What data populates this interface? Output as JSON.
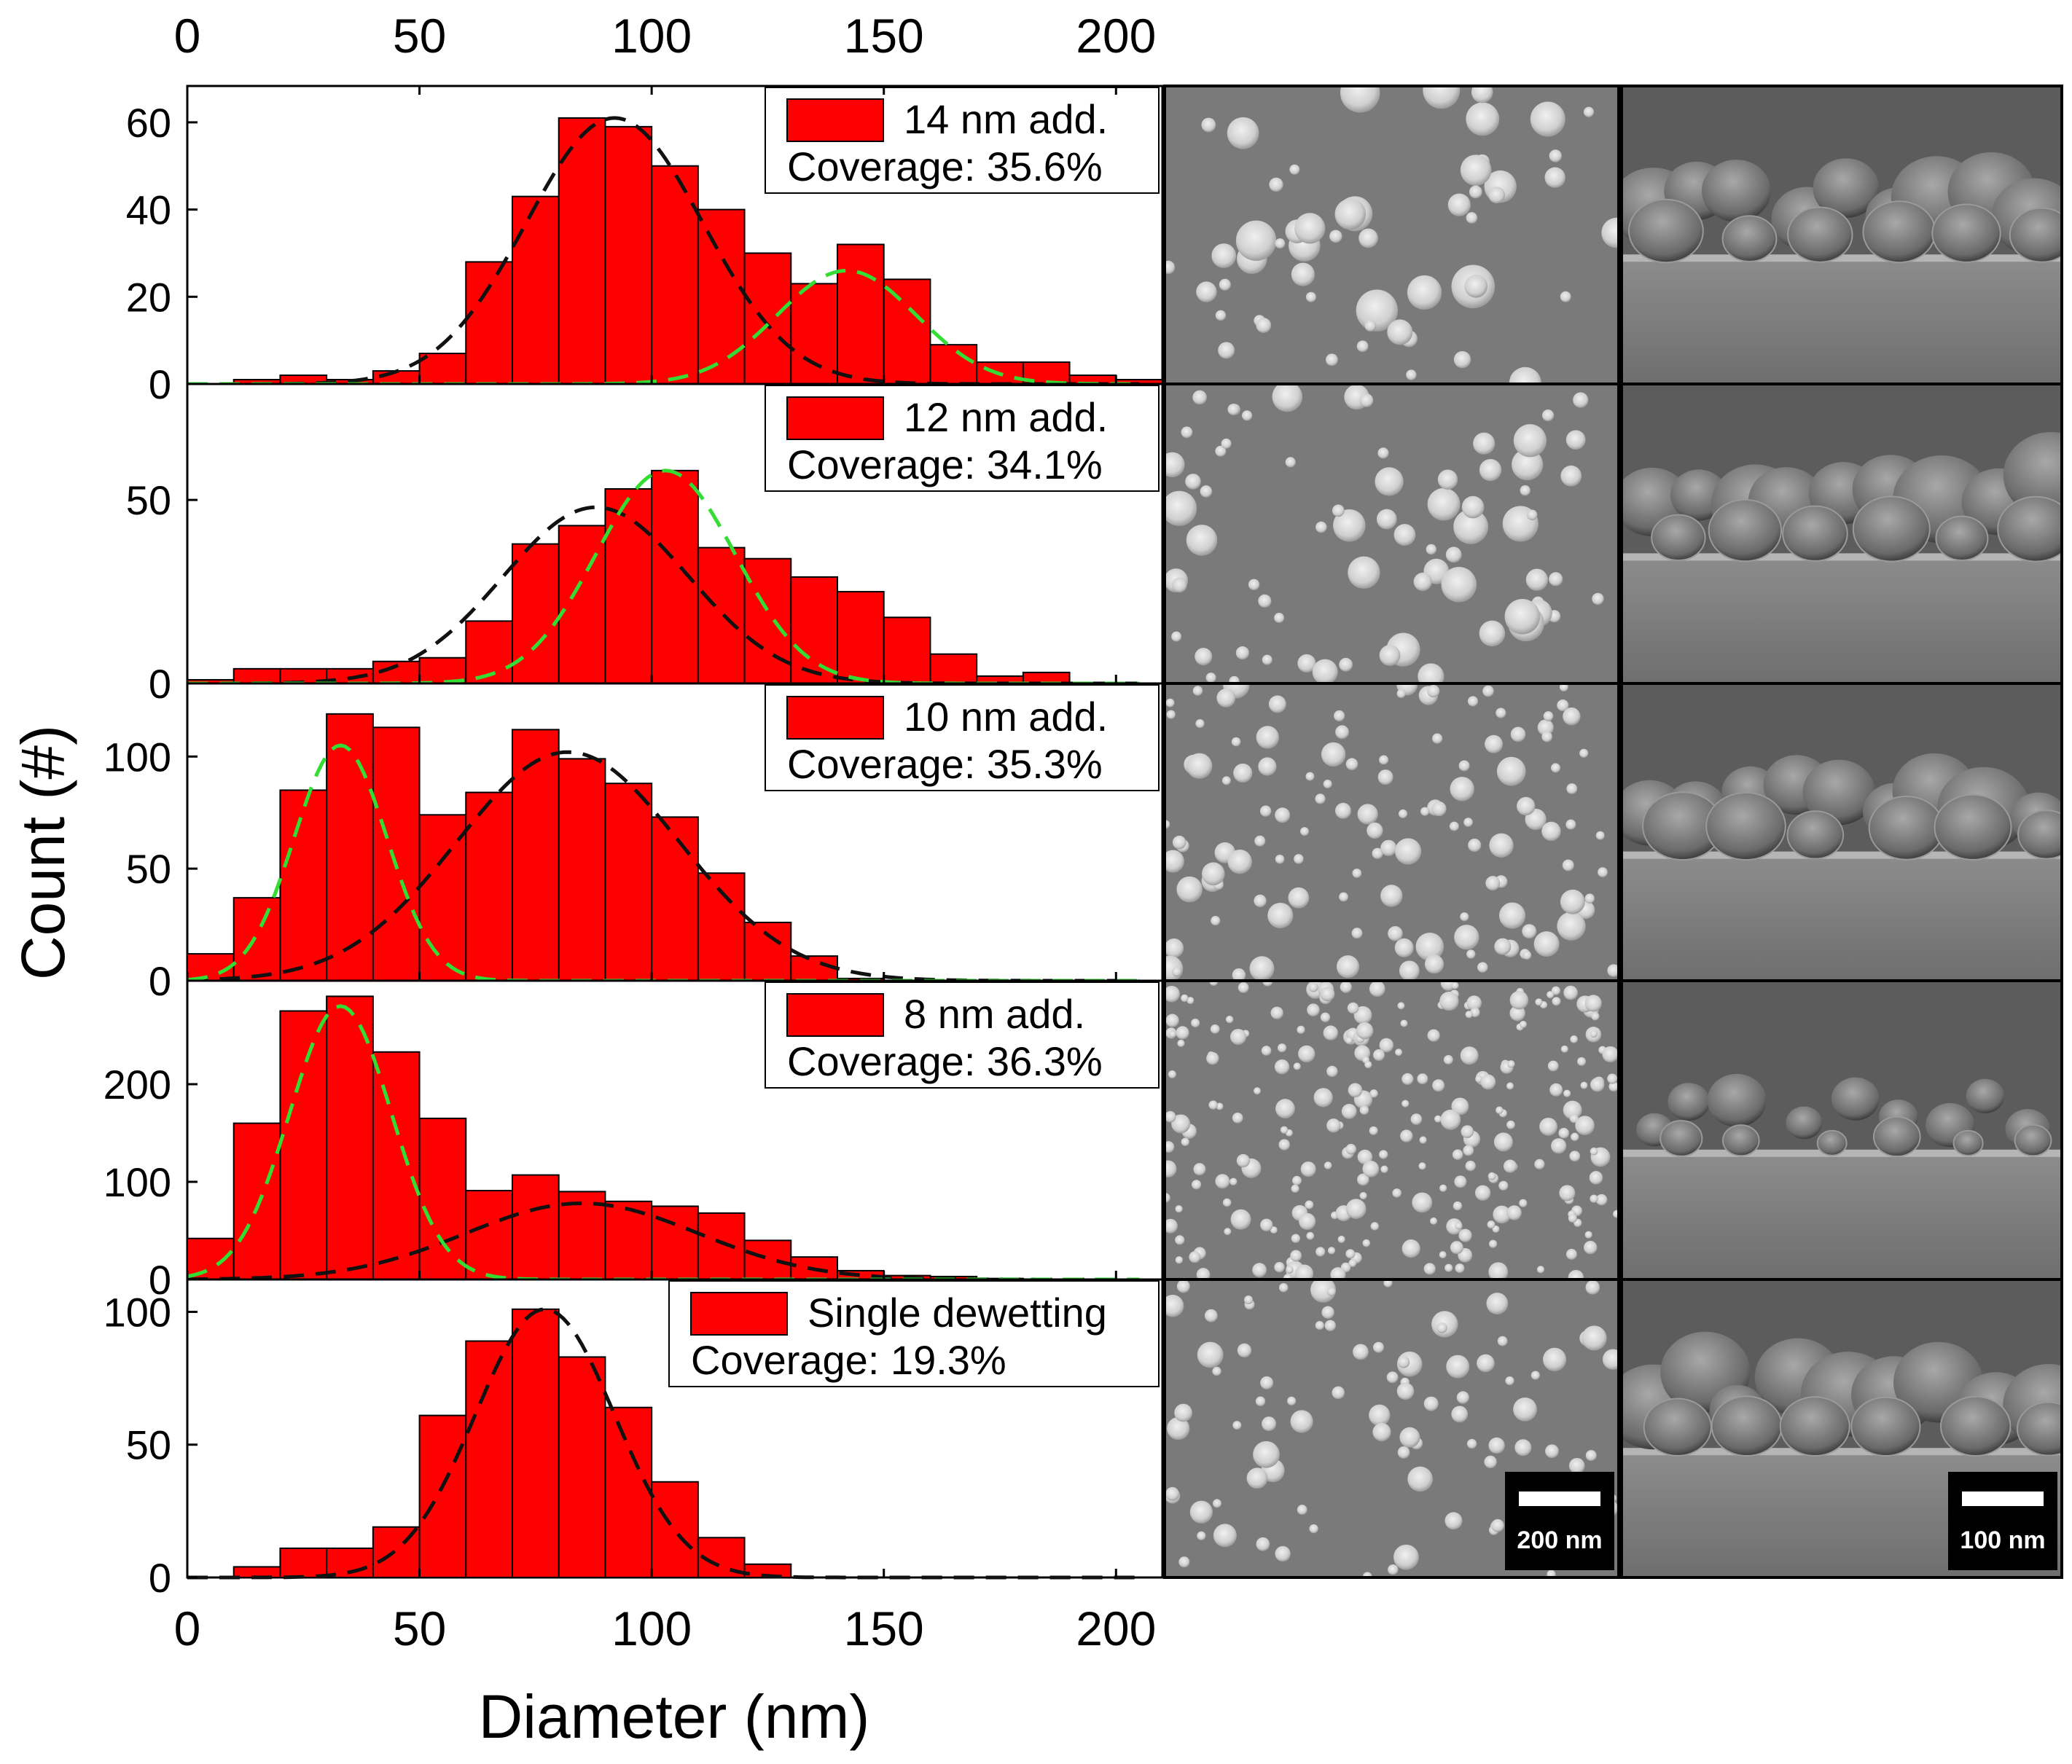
{
  "figure": {
    "x_axis_title": "Diameter (nm)",
    "y_axis_title": "Count (#)"
  },
  "chart_data": [
    {
      "type": "bar",
      "legend": "14 nm add.",
      "coverage": "Coverage: 35.6%",
      "x_bin_starts": [
        0,
        10,
        20,
        30,
        40,
        50,
        60,
        70,
        80,
        90,
        100,
        110,
        120,
        130,
        140,
        150,
        160,
        170,
        180,
        190,
        200
      ],
      "values": [
        0,
        1,
        2,
        1,
        3,
        7,
        28,
        43,
        61,
        59,
        50,
        40,
        30,
        23,
        32,
        24,
        9,
        5,
        5,
        2,
        1
      ],
      "ylim": [
        0,
        67
      ],
      "yticks": [
        0,
        20,
        40,
        60
      ],
      "xlim": [
        0,
        210
      ],
      "fit_black": {
        "amplitude": 61,
        "center": 92,
        "sigma": 19
      },
      "fit_green": {
        "amplitude": 26,
        "center": 142,
        "sigma": 15
      }
    },
    {
      "type": "bar",
      "legend": "12 nm add.",
      "coverage": "Coverage: 34.1%",
      "x_bin_starts": [
        0,
        10,
        20,
        30,
        40,
        50,
        60,
        70,
        80,
        90,
        100,
        110,
        120,
        130,
        140,
        150,
        160,
        170,
        180,
        190,
        200
      ],
      "values": [
        1,
        4,
        4,
        4,
        6,
        7,
        17,
        38,
        43,
        53,
        58,
        37,
        34,
        29,
        25,
        18,
        8,
        2,
        3,
        0,
        0
      ],
      "ylim": [
        0,
        80
      ],
      "yticks": [
        0,
        50
      ],
      "xlim": [
        0,
        210
      ],
      "fit_black": {
        "amplitude": 48,
        "center": 88,
        "sigma": 20
      },
      "fit_green": {
        "amplitude": 58,
        "center": 103,
        "sigma": 15
      }
    },
    {
      "type": "bar",
      "legend": "10 nm add.",
      "coverage": "Coverage: 35.3%",
      "x_bin_starts": [
        0,
        10,
        20,
        30,
        40,
        50,
        60,
        70,
        80,
        90,
        100,
        110,
        120,
        130,
        140,
        150,
        160,
        170,
        180,
        190,
        200
      ],
      "values": [
        12,
        37,
        85,
        119,
        113,
        74,
        84,
        112,
        99,
        88,
        73,
        48,
        26,
        11,
        1,
        0,
        0,
        0,
        0,
        0,
        0
      ],
      "ylim": [
        0,
        130
      ],
      "yticks": [
        0,
        50,
        100
      ],
      "xlim": [
        0,
        210
      ],
      "fit_black": {
        "amplitude": 102,
        "center": 82,
        "sigma": 24
      },
      "fit_green": {
        "amplitude": 105,
        "center": 33,
        "sigma": 10
      }
    },
    {
      "type": "bar",
      "legend": "8 nm add.",
      "coverage": "Coverage: 36.3%",
      "x_bin_starts": [
        0,
        10,
        20,
        30,
        40,
        50,
        60,
        70,
        80,
        90,
        100,
        110,
        120,
        130,
        140,
        150,
        160,
        170,
        180,
        190,
        200
      ],
      "values": [
        42,
        160,
        275,
        290,
        233,
        165,
        91,
        107,
        90,
        80,
        75,
        68,
        40,
        23,
        9,
        4,
        3,
        1,
        0,
        0,
        0
      ],
      "ylim": [
        0,
        300
      ],
      "yticks": [
        0,
        100,
        200
      ],
      "xlim": [
        0,
        210
      ],
      "fit_black": {
        "amplitude": 78,
        "center": 85,
        "sigma": 25
      },
      "fit_green": {
        "amplitude": 280,
        "center": 33,
        "sigma": 11
      }
    },
    {
      "type": "bar",
      "legend": "Single dewetting",
      "coverage": "Coverage: 19.3%",
      "x_bin_starts": [
        0,
        10,
        20,
        30,
        40,
        50,
        60,
        70,
        80,
        90,
        100,
        110,
        120,
        130,
        140,
        150,
        160,
        170,
        180,
        190,
        200
      ],
      "values": [
        0,
        4,
        11,
        11,
        19,
        61,
        89,
        101,
        83,
        64,
        36,
        15,
        5,
        0,
        0,
        0,
        0,
        0,
        0,
        0,
        0
      ],
      "ylim": [
        0,
        110
      ],
      "yticks": [
        0,
        50,
        100
      ],
      "xlim": [
        0,
        210
      ],
      "fit_black": {
        "amplitude": 101,
        "center": 77,
        "sigma": 15
      }
    }
  ],
  "x_ticks": [
    0,
    50,
    100,
    150,
    200
  ],
  "sem_images": {
    "top_view_scale_label": "200 nm",
    "cross_section_scale_label": "100 nm"
  },
  "colors": {
    "bar_fill": "#ff0000",
    "bar_edge": "#000000",
    "fit_black": "#111111",
    "fit_green": "#33dd33",
    "sem_background": "#7a7a7a",
    "sem_particle": "#d8d8d8"
  }
}
